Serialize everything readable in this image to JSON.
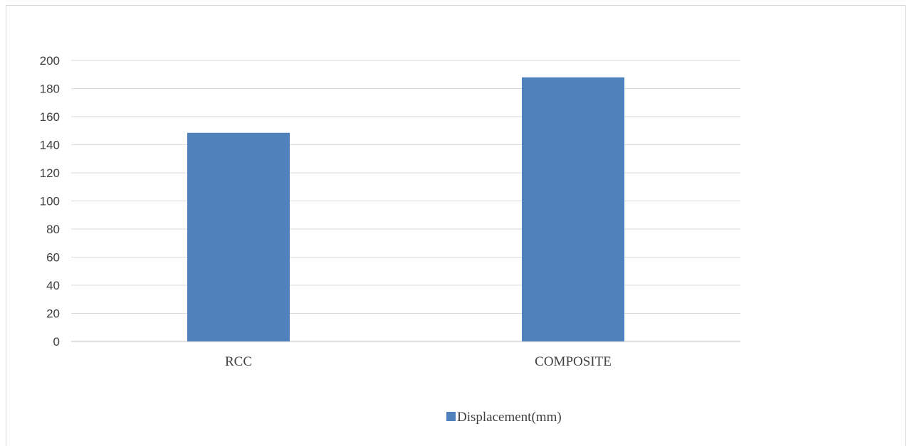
{
  "chart_data": {
    "type": "bar",
    "categories": [
      "RCC",
      "COMPOSITE"
    ],
    "series": [
      {
        "name": "Displacement(mm)",
        "values": [
          148.5,
          188
        ],
        "color": "#4f81bd"
      }
    ],
    "title": "",
    "xlabel": "",
    "ylabel": "",
    "ylim": [
      0,
      200
    ],
    "yticks": [
      "0",
      "20",
      "40",
      "60",
      "80",
      "100",
      "120",
      "140",
      "160",
      "180",
      "200"
    ],
    "grid": true,
    "legend": "bottom"
  }
}
